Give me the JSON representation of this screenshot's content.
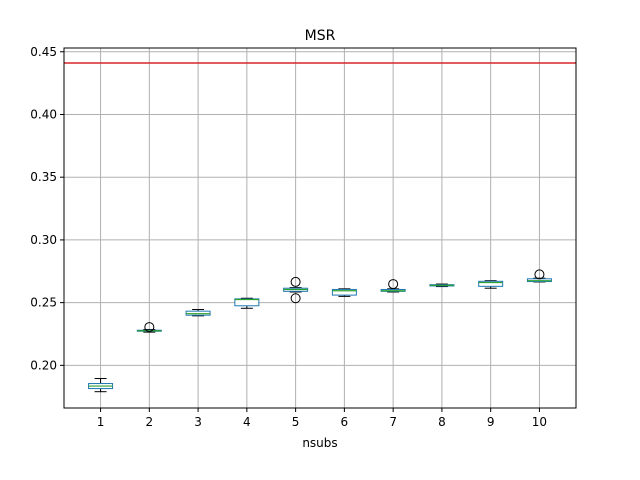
{
  "chart_data": {
    "type": "box",
    "title": "MSR",
    "xlabel": "nsubs",
    "ylabel": "",
    "categories": [
      "1",
      "2",
      "3",
      "4",
      "5",
      "6",
      "7",
      "8",
      "9",
      "10"
    ],
    "ylim": [
      0.166,
      0.453
    ],
    "yticks": [
      0.2,
      0.25,
      0.3,
      0.35,
      0.4,
      0.45
    ],
    "ytick_labels": [
      "0.20",
      "0.25",
      "0.30",
      "0.35",
      "0.40",
      "0.45"
    ],
    "grid": true,
    "reference_line": {
      "y": 0.441,
      "color": "#d62728"
    },
    "box_color": "#1f77b4",
    "median_color": "#2ca02c",
    "boxes": [
      {
        "category": "1",
        "whisker_low": 0.179,
        "q1": 0.1815,
        "median": 0.1835,
        "q3": 0.1855,
        "whisker_high": 0.1895,
        "outliers": []
      },
      {
        "category": "2",
        "whisker_low": 0.2265,
        "q1": 0.2272,
        "median": 0.2276,
        "q3": 0.228,
        "whisker_high": 0.2286,
        "outliers": [
          0.2305
        ]
      },
      {
        "category": "3",
        "whisker_low": 0.2395,
        "q1": 0.24,
        "median": 0.2412,
        "q3": 0.2432,
        "whisker_high": 0.2445,
        "outliers": []
      },
      {
        "category": "4",
        "whisker_low": 0.2455,
        "q1": 0.2475,
        "median": 0.2525,
        "q3": 0.253,
        "whisker_high": 0.2535,
        "outliers": []
      },
      {
        "category": "5",
        "whisker_low": 0.2585,
        "q1": 0.259,
        "median": 0.2605,
        "q3": 0.2615,
        "whisker_high": 0.262,
        "outliers": [
          0.2665,
          0.2535
        ]
      },
      {
        "category": "6",
        "whisker_low": 0.255,
        "q1": 0.256,
        "median": 0.2595,
        "q3": 0.2605,
        "whisker_high": 0.261,
        "outliers": []
      },
      {
        "category": "7",
        "whisker_low": 0.2585,
        "q1": 0.259,
        "median": 0.2595,
        "q3": 0.2605,
        "whisker_high": 0.261,
        "outliers": [
          0.2648
        ]
      },
      {
        "category": "8",
        "whisker_low": 0.2628,
        "q1": 0.2633,
        "median": 0.2638,
        "q3": 0.2643,
        "whisker_high": 0.2648,
        "outliers": []
      },
      {
        "category": "9",
        "whisker_low": 0.2615,
        "q1": 0.263,
        "median": 0.266,
        "q3": 0.267,
        "whisker_high": 0.2675,
        "outliers": []
      },
      {
        "category": "10",
        "whisker_low": 0.2665,
        "q1": 0.2668,
        "median": 0.2675,
        "q3": 0.269,
        "whisker_high": 0.2695,
        "outliers": [
          0.2725
        ]
      }
    ]
  }
}
